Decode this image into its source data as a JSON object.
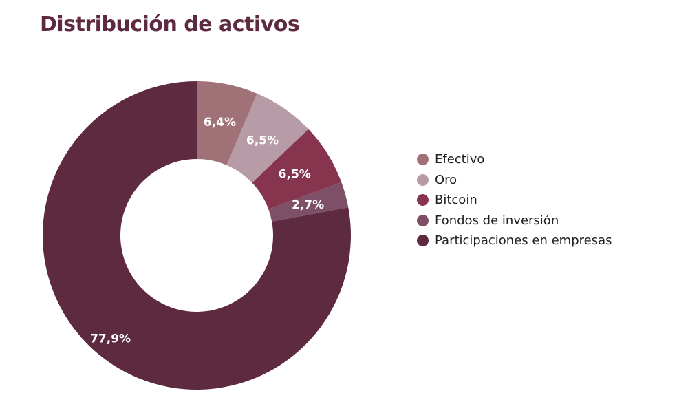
{
  "chart_data": {
    "type": "pie",
    "title": "Distribución de activos",
    "categories": [
      "Efectivo",
      "Oro",
      "Bitcoin",
      "Fondos de inversión",
      "Participaciones en empresas"
    ],
    "values": [
      6.4,
      6.5,
      6.5,
      2.7,
      77.9
    ],
    "value_labels": [
      "6,4%",
      "6,5%",
      "6,5%",
      "2,7%",
      "77,9%"
    ],
    "colors": [
      "#a07278",
      "#b79ba7",
      "#87354f",
      "#7d5068",
      "#5e2a40"
    ],
    "donut": true,
    "legend_position": "right"
  }
}
